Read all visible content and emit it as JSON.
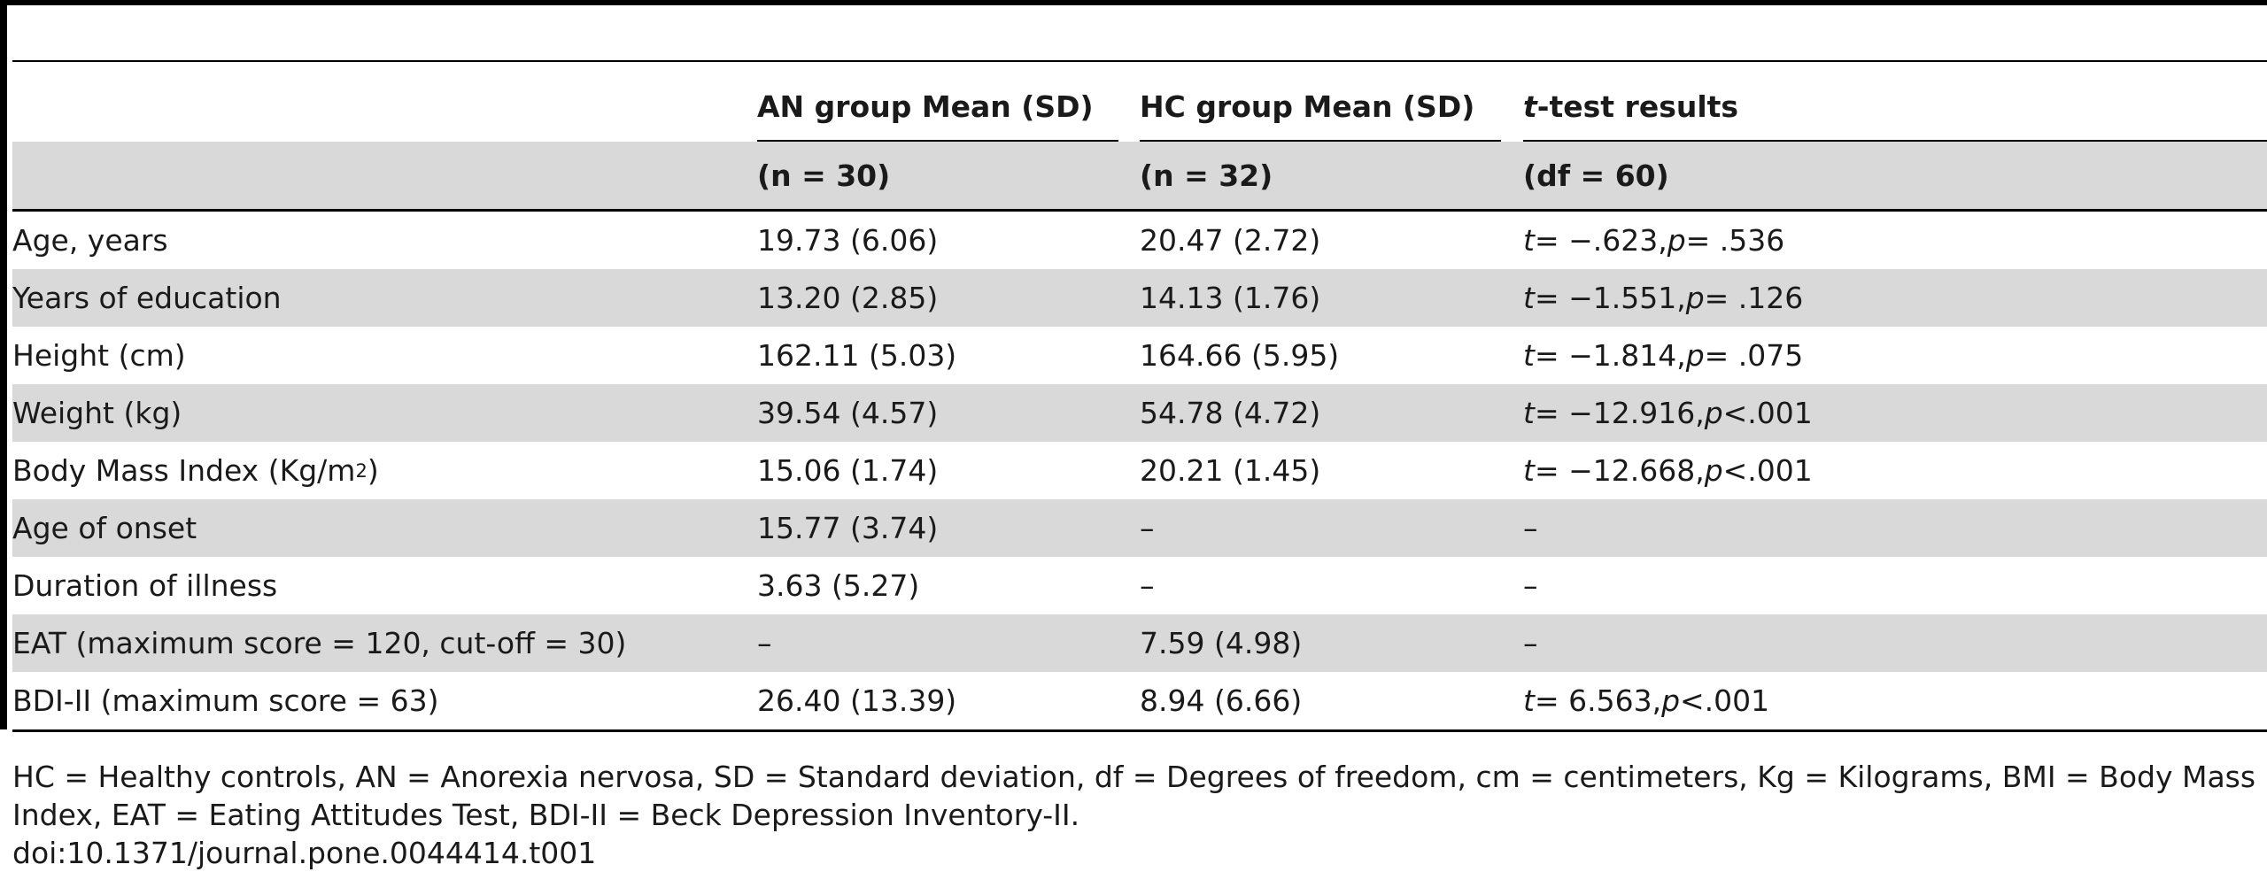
{
  "header": {
    "col1": "",
    "col2_title": "AN group Mean (SD)",
    "col3_title": "HC group Mean (SD)",
    "col4_title_italic": "t",
    "col4_title_rest": "-test results",
    "col2_sub": "(n = 30)",
    "col3_sub": "(n = 32)",
    "col4_sub": "(df = 60)"
  },
  "rows": [
    {
      "label": "Age, years",
      "an": "19.73 (6.06)",
      "hc": "20.47 (2.72)",
      "t": "t",
      "t_val": " = −.623, ",
      "p": "p",
      "p_val": " = .536"
    },
    {
      "label": "Years of education",
      "an": "13.20 (2.85)",
      "hc": "14.13 (1.76)",
      "t": "t",
      "t_val": " = −1.551, ",
      "p": "p",
      "p_val": " = .126"
    },
    {
      "label": "Height (cm)",
      "an": "162.11 (5.03)",
      "hc": "164.66 (5.95)",
      "t": "t",
      "t_val": " = −1.814, ",
      "p": "p",
      "p_val": " = .075"
    },
    {
      "label": "Weight (kg)",
      "an": "39.54 (4.57)",
      "hc": "54.78 (4.72)",
      "t": "t",
      "t_val": " = −12.916, ",
      "p": "p",
      "p_val": "<.001"
    },
    {
      "label_pre": "Body Mass Index (Kg/m",
      "label_sup": "2",
      "label_post": ")",
      "an": "15.06 (1.74)",
      "hc": "20.21 (1.45)",
      "t": "t",
      "t_val": " = −12.668, ",
      "p": "p",
      "p_val": "<.001"
    },
    {
      "label": "Age of onset",
      "an": "15.77 (3.74)",
      "hc": "–",
      "test": "–"
    },
    {
      "label": "Duration of illness",
      "an": "3.63 (5.27)",
      "hc": "–",
      "test": "–"
    },
    {
      "label": "EAT (maximum score = 120, cut-off = 30)",
      "an": "–",
      "hc": "7.59 (4.98)",
      "test": "–"
    },
    {
      "label": "BDI-II (maximum score = 63)",
      "an": "26.40 (13.39)",
      "hc": "8.94 (6.66)",
      "t": "t",
      "t_val": " = 6.563, ",
      "p": "p",
      "p_val": "<.001"
    }
  ],
  "footnote": {
    "abbreviations": "HC = Healthy controls, AN = Anorexia nervosa, SD = Standard deviation, df = Degrees of freedom, cm = centimeters, Kg = Kilograms, BMI = Body Mass Index, EAT = Eating Attitudes Test, BDI-II = Beck Depression Inventory-II.",
    "doi": "doi:10.1371/journal.pone.0044414.t001"
  }
}
